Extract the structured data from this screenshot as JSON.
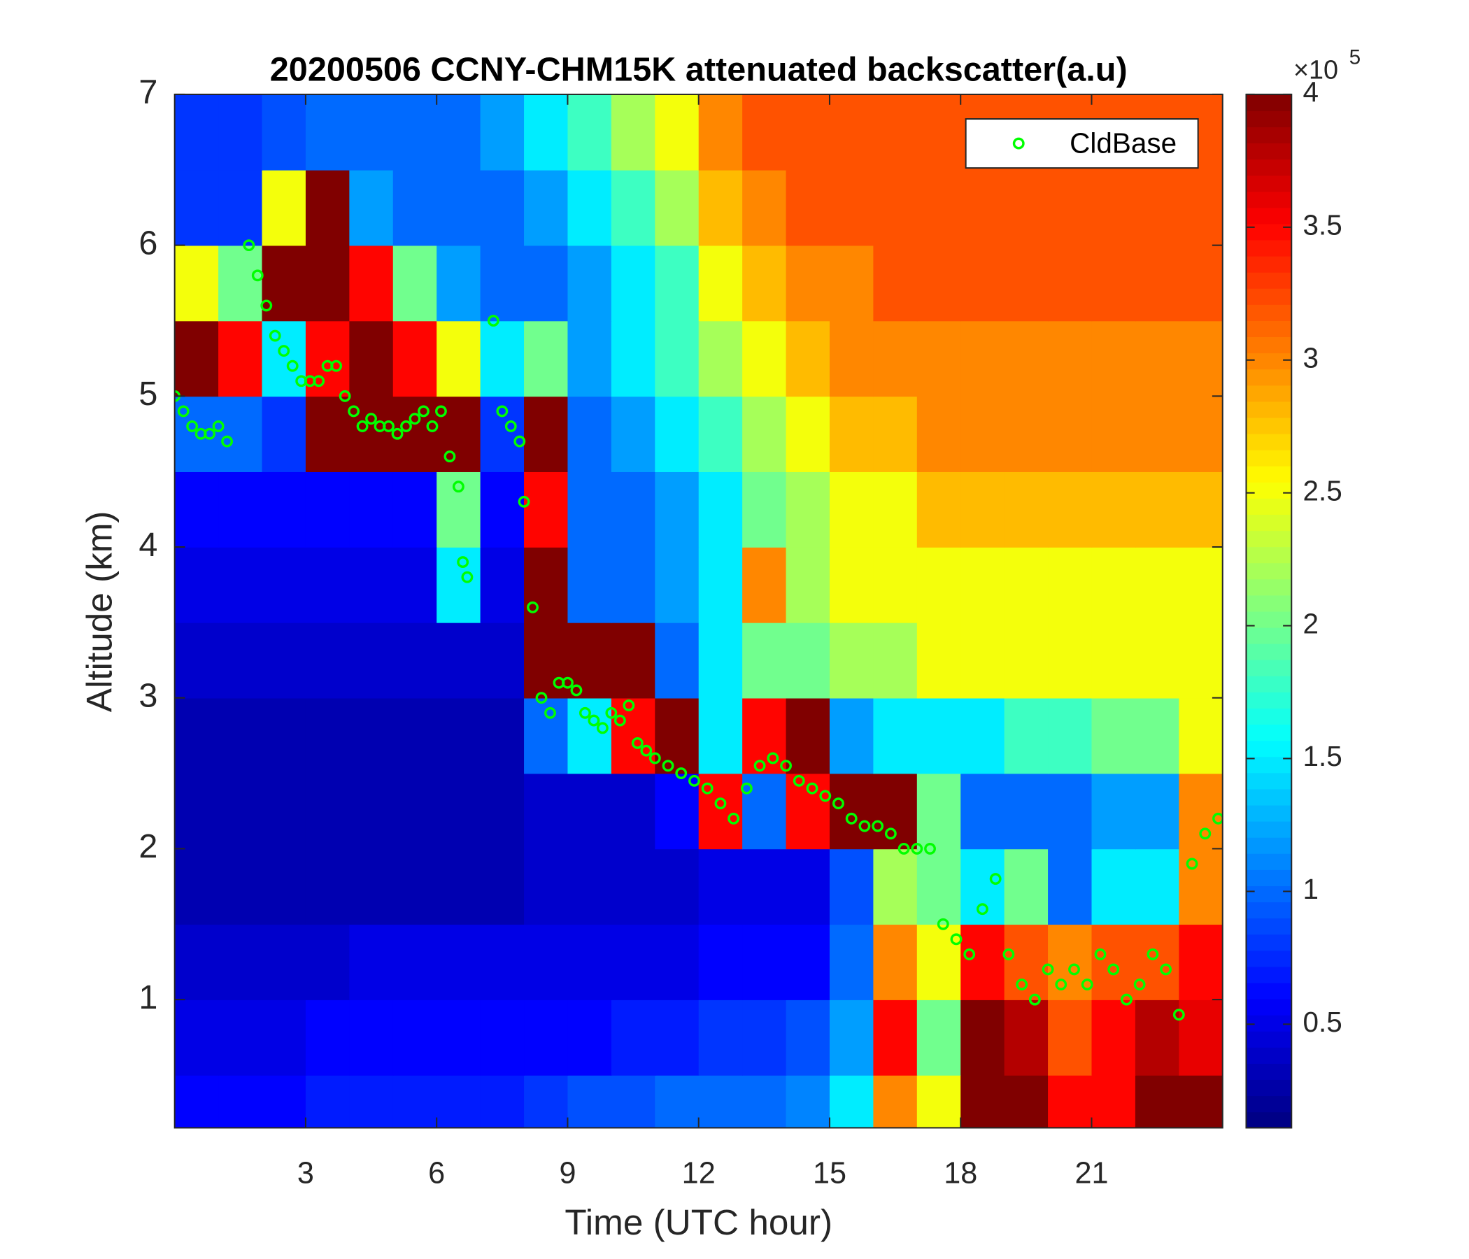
{
  "chart_data": {
    "type": "heatmap",
    "title": "20200506 CCNY-CHM15K attenuated backscatter(a.u)",
    "x_label": "Time (UTC hour)",
    "y_label": "Altitude (km)",
    "xlim": [
      0,
      24
    ],
    "xticks": [
      3,
      6,
      9,
      12,
      15,
      18,
      21
    ],
    "ylim": [
      0.15,
      7
    ],
    "yticks": [
      1,
      2,
      3,
      4,
      5,
      6,
      7
    ],
    "colormap": "jet",
    "clim": [
      0.11,
      4
    ],
    "cticks": [
      0.5,
      1,
      1.5,
      2,
      2.5,
      3,
      3.5,
      4
    ],
    "colorbar_scale": "×10",
    "colorbar_scale_power": "5",
    "grid": false,
    "legend_location": "northeast",
    "heatmap": {
      "x": [
        0.5,
        1.5,
        2.5,
        3.5,
        4.5,
        5.5,
        6.5,
        7.5,
        8.5,
        9.5,
        10.5,
        11.5,
        12.5,
        13.5,
        14.5,
        15.5,
        16.5,
        17.5,
        18.5,
        19.5,
        20.5,
        21.5,
        22.5,
        23.5
      ],
      "y": [
        0.25,
        0.75,
        1.25,
        1.75,
        2.25,
        2.75,
        3.25,
        3.75,
        4.25,
        4.75,
        5.25,
        5.75,
        6.25,
        6.75
      ],
      "z": [
        [
          0.6,
          0.6,
          0.6,
          0.7,
          0.7,
          0.7,
          0.7,
          0.7,
          0.8,
          0.9,
          0.9,
          1.0,
          1.0,
          1.0,
          1.1,
          1.5,
          3.0,
          2.5,
          4,
          4,
          3.5,
          3.5,
          4,
          4
        ],
        [
          0.5,
          0.5,
          0.5,
          0.6,
          0.6,
          0.6,
          0.6,
          0.6,
          0.6,
          0.6,
          0.7,
          0.7,
          0.8,
          0.8,
          0.9,
          1.2,
          3.5,
          2.0,
          4,
          3.8,
          3.2,
          3.5,
          3.8,
          3.6
        ],
        [
          0.4,
          0.4,
          0.4,
          0.4,
          0.5,
          0.5,
          0.5,
          0.5,
          0.5,
          0.5,
          0.5,
          0.5,
          0.6,
          0.6,
          0.6,
          1.0,
          3.0,
          2.5,
          3.5,
          3.2,
          3.0,
          3.2,
          3.2,
          3.5
        ],
        [
          0.3,
          0.3,
          0.3,
          0.3,
          0.3,
          0.3,
          0.3,
          0.3,
          0.4,
          0.4,
          0.4,
          0.4,
          0.5,
          0.5,
          0.5,
          0.9,
          2.2,
          2.0,
          1.5,
          2.0,
          1.0,
          1.5,
          1.5,
          3.0
        ],
        [
          0.3,
          0.3,
          0.3,
          0.3,
          0.3,
          0.3,
          0.3,
          0.3,
          0.4,
          0.4,
          0.4,
          0.6,
          3.5,
          1.0,
          3.5,
          4,
          4,
          2.0,
          1.0,
          1.0,
          1.0,
          1.2,
          1.2,
          3.0
        ],
        [
          0.3,
          0.3,
          0.3,
          0.3,
          0.3,
          0.3,
          0.3,
          0.3,
          1.0,
          1.5,
          3.5,
          4,
          1.5,
          3.5,
          4,
          1.2,
          1.5,
          1.5,
          1.5,
          1.8,
          1.8,
          2.0,
          2.0,
          2.5
        ],
        [
          0.4,
          0.4,
          0.4,
          0.4,
          0.4,
          0.4,
          0.4,
          0.4,
          4,
          4,
          4,
          1.0,
          1.5,
          2.0,
          2.0,
          2.2,
          2.2,
          2.5,
          2.5,
          2.5,
          2.5,
          2.5,
          2.5,
          2.5
        ],
        [
          0.5,
          0.5,
          0.5,
          0.5,
          0.5,
          0.5,
          1.5,
          0.5,
          4,
          1.0,
          1.0,
          1.2,
          1.5,
          3.0,
          2.2,
          2.5,
          2.5,
          2.5,
          2.5,
          2.5,
          2.5,
          2.5,
          2.5,
          2.5
        ],
        [
          0.6,
          0.6,
          0.6,
          0.6,
          0.6,
          0.6,
          2.0,
          0.6,
          3.5,
          1.0,
          1.0,
          1.2,
          1.5,
          2.0,
          2.2,
          2.5,
          2.5,
          2.8,
          2.8,
          2.8,
          2.8,
          2.8,
          2.8,
          2.8
        ],
        [
          1.0,
          1.0,
          0.8,
          4,
          4,
          4,
          4,
          0.8,
          4,
          1.0,
          1.2,
          1.5,
          1.8,
          2.2,
          2.5,
          2.8,
          2.8,
          3.0,
          3.0,
          3.0,
          3.0,
          3.0,
          3.0,
          3.0
        ],
        [
          4,
          3.5,
          1.5,
          3.5,
          4,
          3.5,
          2.5,
          1.5,
          2.0,
          1.2,
          1.5,
          1.8,
          2.2,
          2.5,
          2.8,
          3.0,
          3.0,
          3.0,
          3.0,
          3.0,
          3.0,
          3.0,
          3.0,
          3.0
        ],
        [
          2.5,
          2.0,
          4,
          4,
          3.5,
          2.0,
          1.2,
          1.0,
          1.0,
          1.2,
          1.5,
          1.8,
          2.5,
          2.8,
          3.0,
          3.0,
          3.2,
          3.2,
          3.2,
          3.2,
          3.2,
          3.2,
          3.2,
          3.2
        ],
        [
          0.8,
          0.8,
          2.5,
          4,
          1.2,
          1.0,
          1.0,
          1.0,
          1.2,
          1.5,
          1.8,
          2.2,
          2.8,
          3.0,
          3.2,
          3.2,
          3.2,
          3.2,
          3.2,
          3.2,
          3.2,
          3.2,
          3.2,
          3.2
        ],
        [
          0.8,
          0.8,
          0.9,
          1.0,
          1.0,
          1.0,
          1.0,
          1.2,
          1.5,
          1.8,
          2.2,
          2.5,
          3.0,
          3.2,
          3.2,
          3.2,
          3.2,
          3.2,
          3.2,
          3.2,
          3.2,
          3.2,
          3.2,
          3.2
        ]
      ]
    },
    "series": [
      {
        "name": "CldBase",
        "color": "#00ff00",
        "marker": "circle",
        "x": [
          0,
          0.2,
          0.4,
          0.6,
          0.8,
          1.0,
          1.2,
          1.7,
          1.9,
          2.1,
          2.3,
          2.5,
          2.7,
          2.9,
          3.1,
          3.3,
          3.5,
          3.7,
          3.9,
          4.1,
          4.3,
          4.5,
          4.7,
          4.9,
          5.1,
          5.3,
          5.5,
          5.7,
          5.9,
          6.1,
          6.3,
          6.5,
          6.6,
          6.7,
          7.3,
          7.5,
          7.7,
          7.9,
          8.0,
          8.2,
          8.4,
          8.6,
          8.8,
          9.0,
          9.2,
          9.4,
          9.6,
          9.8,
          10.0,
          10.2,
          10.4,
          10.6,
          10.8,
          11.0,
          11.3,
          11.6,
          11.9,
          12.2,
          12.5,
          12.8,
          13.1,
          13.4,
          13.7,
          14.0,
          14.3,
          14.6,
          14.9,
          15.2,
          15.5,
          15.8,
          16.1,
          16.4,
          16.7,
          17.0,
          17.3,
          17.6,
          17.9,
          18.2,
          18.5,
          18.8,
          19.1,
          19.4,
          19.7,
          20.0,
          20.3,
          20.6,
          20.9,
          21.2,
          21.5,
          21.8,
          22.1,
          22.4,
          22.7,
          23.0,
          23.3,
          23.6,
          23.9
        ],
        "values": [
          5.0,
          4.9,
          4.8,
          4.75,
          4.75,
          4.8,
          4.7,
          6.0,
          5.8,
          5.6,
          5.4,
          5.3,
          5.2,
          5.1,
          5.1,
          5.1,
          5.2,
          5.2,
          5.0,
          4.9,
          4.8,
          4.85,
          4.8,
          4.8,
          4.75,
          4.8,
          4.85,
          4.9,
          4.8,
          4.9,
          4.6,
          4.4,
          3.9,
          3.8,
          5.5,
          4.9,
          4.8,
          4.7,
          4.3,
          3.6,
          3.0,
          2.9,
          3.1,
          3.1,
          3.05,
          2.9,
          2.85,
          2.8,
          2.9,
          2.85,
          2.95,
          2.7,
          2.65,
          2.6,
          2.55,
          2.5,
          2.45,
          2.4,
          2.3,
          2.2,
          2.4,
          2.55,
          2.6,
          2.55,
          2.45,
          2.4,
          2.35,
          2.3,
          2.2,
          2.15,
          2.15,
          2.1,
          2.0,
          2.0,
          2.0,
          1.5,
          1.4,
          1.3,
          1.6,
          1.8,
          1.3,
          1.1,
          1.0,
          1.2,
          1.1,
          1.2,
          1.1,
          1.3,
          1.2,
          1.0,
          1.1,
          1.3,
          1.2,
          0.9,
          1.9,
          2.1,
          2.2
        ]
      }
    ]
  }
}
